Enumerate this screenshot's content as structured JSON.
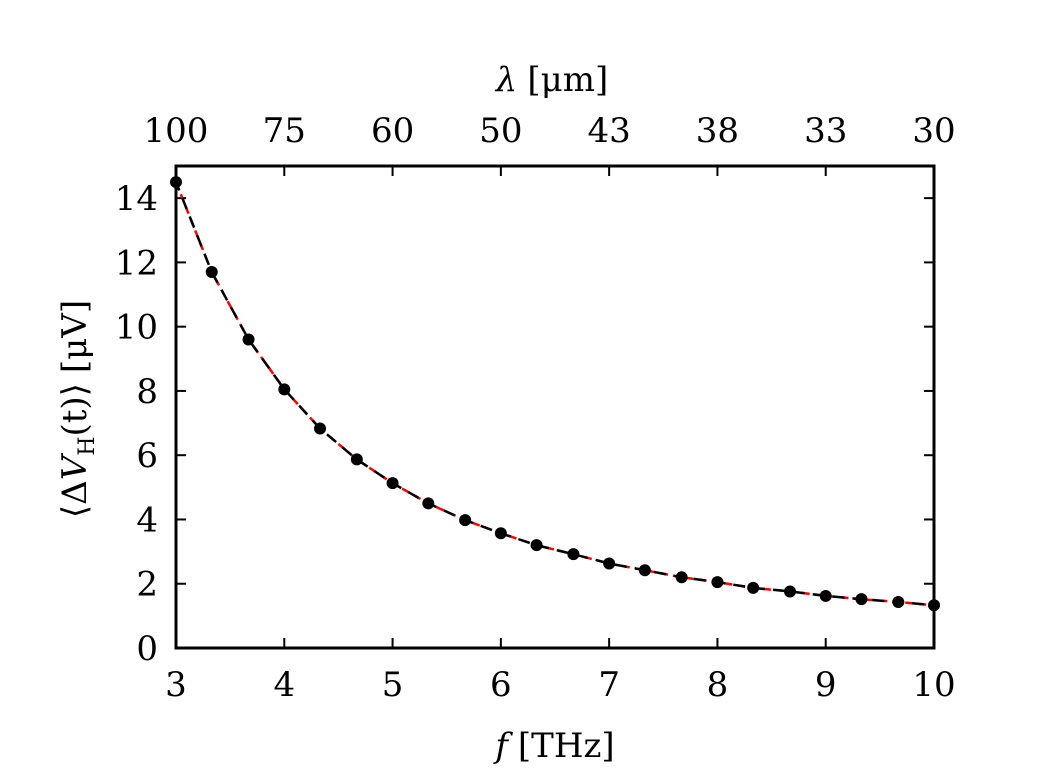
{
  "chart_data": {
    "type": "line",
    "xlabel": {
      "var": "f",
      "unit": "[THz]"
    },
    "ylabel": {
      "open": "⟨Δ",
      "var": "V",
      "sub": "H",
      "fn": "(t)",
      "close": "⟩",
      "unit": "[μV]"
    },
    "top_xlabel": {
      "var": "λ",
      "unit": "[μm]"
    },
    "xlim": [
      3,
      10
    ],
    "ylim": [
      0,
      15
    ],
    "xticks": [
      3,
      4,
      5,
      6,
      7,
      8,
      9,
      10
    ],
    "yticks": [
      0,
      2,
      4,
      6,
      8,
      10,
      12,
      14
    ],
    "top_ticks": [
      {
        "label": "100",
        "f": 3.0
      },
      {
        "label": "75",
        "f": 4.0
      },
      {
        "label": "60",
        "f": 5.0
      },
      {
        "label": "50",
        "f": 6.0
      },
      {
        "label": "43",
        "f": 7.0
      },
      {
        "label": "38",
        "f": 8.0
      },
      {
        "label": "33",
        "f": 9.0
      },
      {
        "label": "30",
        "f": 10.0
      }
    ],
    "series": [
      {
        "style": "points",
        "color": "#000000",
        "x": [
          3.0,
          3.33,
          3.67,
          4.0,
          4.33,
          4.67,
          5.0,
          5.33,
          5.67,
          6.0,
          6.33,
          6.67,
          7.0,
          7.33,
          7.67,
          8.0,
          8.33,
          8.67,
          9.0,
          9.33,
          9.67,
          10.0
        ],
        "y": [
          14.5,
          11.7,
          9.6,
          8.05,
          6.83,
          5.87,
          5.13,
          4.5,
          3.98,
          3.57,
          3.2,
          2.92,
          2.63,
          2.42,
          2.2,
          2.05,
          1.87,
          1.76,
          1.62,
          1.52,
          1.43,
          1.33
        ]
      },
      {
        "style": "fit-red",
        "color": "#ff0000",
        "dash": "dashed",
        "x": [
          3.0,
          3.33,
          3.67,
          4.0,
          4.33,
          4.67,
          5.0,
          5.33,
          5.67,
          6.0,
          6.33,
          6.67,
          7.0,
          7.33,
          7.67,
          8.0,
          8.33,
          8.67,
          9.0,
          9.33,
          9.67,
          10.0
        ],
        "y": [
          14.5,
          11.7,
          9.6,
          8.05,
          6.83,
          5.87,
          5.13,
          4.5,
          3.98,
          3.57,
          3.2,
          2.92,
          2.63,
          2.42,
          2.2,
          2.05,
          1.87,
          1.76,
          1.62,
          1.52,
          1.43,
          1.33
        ]
      },
      {
        "style": "fit-black",
        "color": "#000000",
        "dash": "dashed",
        "x": [
          3.0,
          3.33,
          3.67,
          4.0,
          4.33,
          4.67,
          5.0,
          5.33,
          5.67,
          6.0,
          6.33,
          6.67,
          7.0,
          7.33,
          7.67,
          8.0,
          8.33,
          8.67,
          9.0,
          9.33,
          9.67,
          10.0
        ],
        "y": [
          14.5,
          11.7,
          9.6,
          8.05,
          6.83,
          5.87,
          5.13,
          4.5,
          3.98,
          3.57,
          3.2,
          2.92,
          2.63,
          2.42,
          2.2,
          2.05,
          1.87,
          1.76,
          1.62,
          1.52,
          1.43,
          1.33
        ]
      }
    ],
    "grid": false
  }
}
